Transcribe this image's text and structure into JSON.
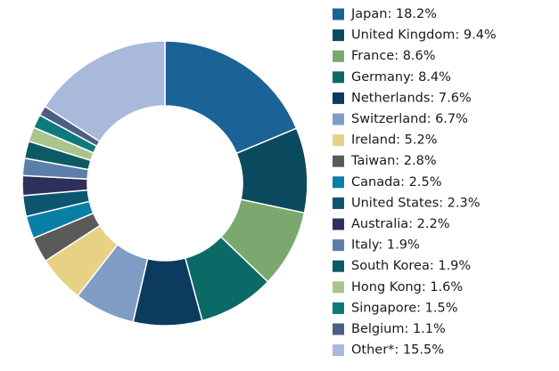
{
  "chart_data": {
    "type": "donut",
    "categories": [
      "Japan: 18.2%",
      "United Kingdom: 9.4%",
      "France: 8.6%",
      "Germany: 8.4%",
      "Netherlands: 7.6%",
      "Switzerland: 6.7%",
      "Ireland: 5.2%",
      "Taiwan: 2.8%",
      "Canada: 2.5%",
      "United States: 2.3%",
      "Australia: 2.2%",
      "Italy: 1.9%",
      "South Korea: 1.9%",
      "Hong Kong: 1.6%",
      "Singapore: 1.5%",
      "Belgium: 1.1%",
      "Other*: 15.5%"
    ],
    "values": [
      18.2,
      9.4,
      8.6,
      8.4,
      7.6,
      6.7,
      5.2,
      2.8,
      2.5,
      2.3,
      2.2,
      1.9,
      1.9,
      1.6,
      1.5,
      1.1,
      15.5
    ],
    "colors": [
      "#1b6296",
      "#0b4a5e",
      "#7aa86e",
      "#0b6a66",
      "#0b3b5f",
      "#7f9cc4",
      "#e7d283",
      "#5a5a5a",
      "#0a7fa6",
      "#0e5670",
      "#2f2f5b",
      "#5c7fa9",
      "#0d5a67",
      "#a9c48c",
      "#0b7a7a",
      "#4b5f81",
      "#a9b9d9"
    ]
  }
}
